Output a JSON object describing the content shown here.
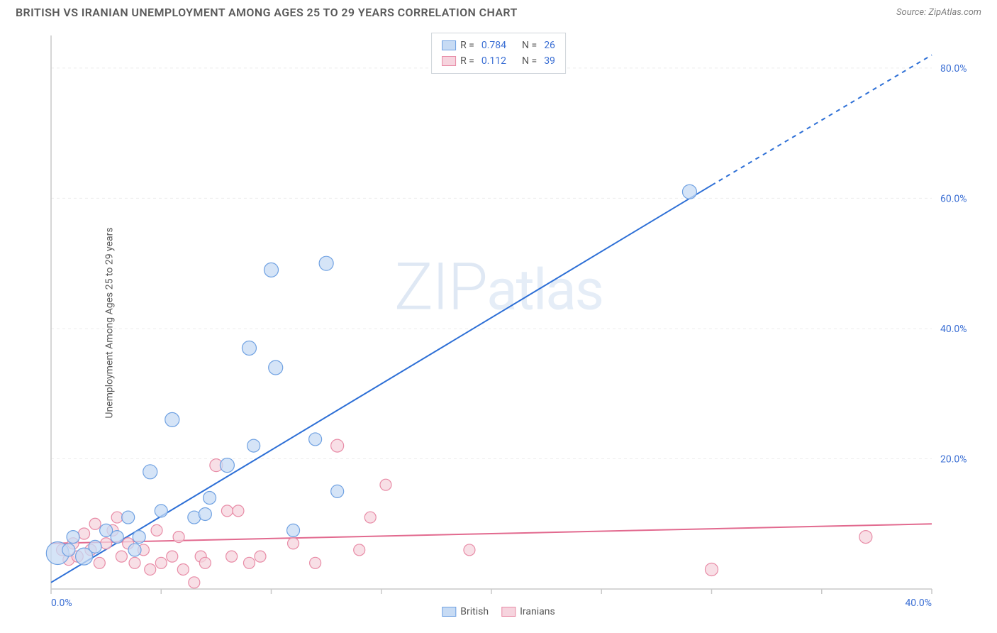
{
  "header": {
    "title": "BRITISH VS IRANIAN UNEMPLOYMENT AMONG AGES 25 TO 29 YEARS CORRELATION CHART",
    "source": "Source: ZipAtlas.com"
  },
  "watermark": "ZIPatlas",
  "chart": {
    "type": "scatter-with-regression",
    "ylabel": "Unemployment Among Ages 25 to 29 years",
    "background_color": "#ffffff",
    "grid_color": "#ececec",
    "axis_color": "#c9c9c9",
    "tick_label_color": "#3b6fd4",
    "xlim": [
      0,
      40
    ],
    "ylim": [
      0,
      85
    ],
    "x_ticks": [
      0,
      5,
      10,
      15,
      20,
      25,
      30,
      35,
      40
    ],
    "x_tick_labels_shown": {
      "0": "0.0%",
      "40": "40.0%"
    },
    "y_ticks": [
      20,
      40,
      60,
      80
    ],
    "y_tick_labels": {
      "20": "20.0%",
      "40": "40.0%",
      "60": "60.0%",
      "80": "80.0%"
    },
    "series": [
      {
        "name": "British",
        "color_fill": "#c7dbf4",
        "color_stroke": "#6fa1e2",
        "line_color": "#2d6fd6",
        "line_width": 2,
        "marker_r_base": 9,
        "stats": {
          "R": "0.784",
          "N": "26"
        },
        "regression": {
          "x1": 0,
          "y1": 1,
          "x2": 30,
          "y2": 62,
          "dash_after_x": 30,
          "dash_to_x": 40,
          "dash_to_y": 82
        },
        "points": [
          {
            "x": 0.3,
            "y": 5.5,
            "r": 16
          },
          {
            "x": 0.8,
            "y": 6,
            "r": 9
          },
          {
            "x": 1.5,
            "y": 5,
            "r": 12
          },
          {
            "x": 1.0,
            "y": 8,
            "r": 9
          },
          {
            "x": 2.0,
            "y": 6.5,
            "r": 9
          },
          {
            "x": 2.5,
            "y": 9,
            "r": 9
          },
          {
            "x": 3.0,
            "y": 8,
            "r": 9
          },
          {
            "x": 3.5,
            "y": 11,
            "r": 9
          },
          {
            "x": 3.8,
            "y": 6,
            "r": 9
          },
          {
            "x": 4.0,
            "y": 8,
            "r": 9
          },
          {
            "x": 4.5,
            "y": 18,
            "r": 10
          },
          {
            "x": 5.0,
            "y": 12,
            "r": 9
          },
          {
            "x": 5.5,
            "y": 26,
            "r": 10
          },
          {
            "x": 6.5,
            "y": 11,
            "r": 9
          },
          {
            "x": 7.0,
            "y": 11.5,
            "r": 9
          },
          {
            "x": 7.2,
            "y": 14,
            "r": 9
          },
          {
            "x": 8.0,
            "y": 19,
            "r": 10
          },
          {
            "x": 9.0,
            "y": 37,
            "r": 10
          },
          {
            "x": 9.2,
            "y": 22,
            "r": 9
          },
          {
            "x": 10.0,
            "y": 49,
            "r": 10
          },
          {
            "x": 10.2,
            "y": 34,
            "r": 10
          },
          {
            "x": 11.0,
            "y": 9,
            "r": 9
          },
          {
            "x": 12.0,
            "y": 23,
            "r": 9
          },
          {
            "x": 12.5,
            "y": 50,
            "r": 10
          },
          {
            "x": 13.0,
            "y": 15,
            "r": 9
          },
          {
            "x": 29.0,
            "y": 61,
            "r": 10
          }
        ]
      },
      {
        "name": "Iranians",
        "color_fill": "#f6d4de",
        "color_stroke": "#e88ba6",
        "line_color": "#e26a8f",
        "line_width": 2,
        "marker_r_base": 8,
        "stats": {
          "R": "0.112",
          "N": "39"
        },
        "regression": {
          "x1": 0,
          "y1": 7,
          "x2": 40,
          "y2": 10
        },
        "points": [
          {
            "x": 0.5,
            "y": 6,
            "r": 8
          },
          {
            "x": 0.8,
            "y": 4.5,
            "r": 8
          },
          {
            "x": 1.0,
            "y": 7,
            "r": 8
          },
          {
            "x": 1.2,
            "y": 5,
            "r": 8
          },
          {
            "x": 1.5,
            "y": 8.5,
            "r": 8
          },
          {
            "x": 1.8,
            "y": 6,
            "r": 8
          },
          {
            "x": 2.0,
            "y": 10,
            "r": 8
          },
          {
            "x": 2.2,
            "y": 4,
            "r": 8
          },
          {
            "x": 2.5,
            "y": 7,
            "r": 8
          },
          {
            "x": 2.8,
            "y": 9,
            "r": 8
          },
          {
            "x": 3.0,
            "y": 11,
            "r": 8
          },
          {
            "x": 3.2,
            "y": 5,
            "r": 8
          },
          {
            "x": 3.5,
            "y": 7,
            "r": 8
          },
          {
            "x": 3.8,
            "y": 4,
            "r": 8
          },
          {
            "x": 4.2,
            "y": 6,
            "r": 8
          },
          {
            "x": 4.5,
            "y": 3,
            "r": 8
          },
          {
            "x": 4.8,
            "y": 9,
            "r": 8
          },
          {
            "x": 5.0,
            "y": 4,
            "r": 8
          },
          {
            "x": 5.5,
            "y": 5,
            "r": 8
          },
          {
            "x": 5.8,
            "y": 8,
            "r": 8
          },
          {
            "x": 6.0,
            "y": 3,
            "r": 8
          },
          {
            "x": 6.5,
            "y": 1,
            "r": 8
          },
          {
            "x": 6.8,
            "y": 5,
            "r": 8
          },
          {
            "x": 7.0,
            "y": 4,
            "r": 8
          },
          {
            "x": 7.5,
            "y": 19,
            "r": 9
          },
          {
            "x": 8.0,
            "y": 12,
            "r": 8
          },
          {
            "x": 8.2,
            "y": 5,
            "r": 8
          },
          {
            "x": 8.5,
            "y": 12,
            "r": 8
          },
          {
            "x": 9.0,
            "y": 4,
            "r": 8
          },
          {
            "x": 9.5,
            "y": 5,
            "r": 8
          },
          {
            "x": 12.0,
            "y": 4,
            "r": 8
          },
          {
            "x": 13.0,
            "y": 22,
            "r": 9
          },
          {
            "x": 14.0,
            "y": 6,
            "r": 8
          },
          {
            "x": 14.5,
            "y": 11,
            "r": 8
          },
          {
            "x": 15.2,
            "y": 16,
            "r": 8
          },
          {
            "x": 19.0,
            "y": 6,
            "r": 8
          },
          {
            "x": 30.0,
            "y": 3,
            "r": 9
          },
          {
            "x": 37.0,
            "y": 8,
            "r": 9
          },
          {
            "x": 11.0,
            "y": 7,
            "r": 8
          }
        ]
      }
    ],
    "category_legend": [
      {
        "label": "British",
        "fill": "#c7dbf4",
        "stroke": "#6fa1e2"
      },
      {
        "label": "Iranians",
        "fill": "#f6d4de",
        "stroke": "#e88ba6"
      }
    ],
    "stats_legend_labels": {
      "R": "R =",
      "N": "N ="
    }
  }
}
